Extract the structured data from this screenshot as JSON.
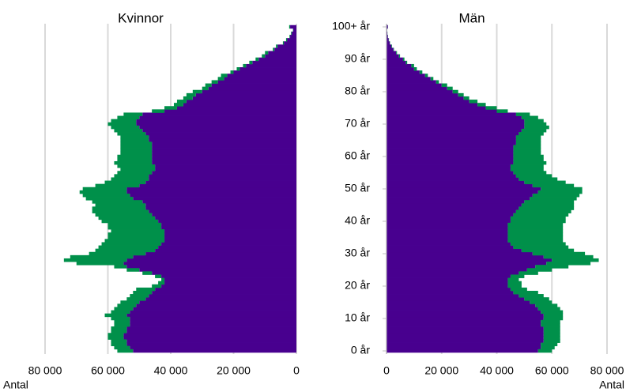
{
  "chart_data": [
    {
      "type": "bar",
      "orientation": "horizontal",
      "stacked": true,
      "title": "Kvinnor",
      "xlabel": "Antal",
      "xlim": [
        80000,
        0
      ],
      "xticks": [
        {
          "value": 80000,
          "label": "80 000"
        },
        {
          "value": 60000,
          "label": "60 000"
        },
        {
          "value": 40000,
          "label": "40 000"
        },
        {
          "value": 20000,
          "label": "20 000"
        },
        0
      ],
      "grid": true,
      "series": [
        {
          "color": "#48008f",
          "values": [
            52000,
            53000,
            54000,
            54000,
            55000,
            55000,
            54000,
            54000,
            53000,
            53000,
            53000,
            54000,
            53000,
            52000,
            51000,
            50000,
            48000,
            47000,
            46000,
            45000,
            43000,
            42000,
            42000,
            43000,
            46000,
            50000,
            54000,
            55000,
            54000,
            52000,
            48000,
            45000,
            44000,
            43000,
            42000,
            42000,
            42000,
            42000,
            43000,
            43000,
            44000,
            45000,
            46000,
            47000,
            48000,
            48000,
            49000,
            52000,
            53000,
            54000,
            54000,
            50000,
            48000,
            47000,
            47000,
            46000,
            45000,
            45000,
            46000,
            46000,
            46000,
            46000,
            46000,
            46000,
            46000,
            47000,
            47000,
            48000,
            49000,
            50000,
            51000,
            51000,
            50000,
            49000,
            42000,
            38000,
            36000,
            35000,
            33000,
            32000,
            30000,
            28000,
            27000,
            25000,
            23000,
            22000,
            20000,
            18000,
            16000,
            14000,
            12000,
            10000,
            9000,
            7000,
            6000,
            4000,
            3000,
            2000,
            1500,
            1000,
            2000
          ]
        },
        {
          "color": "#00904a",
          "values": [
            5000,
            5000,
            5000,
            5000,
            5000,
            5000,
            5000,
            5000,
            5000,
            5000,
            6000,
            7000,
            6000,
            6000,
            6000,
            6000,
            6000,
            6000,
            6000,
            6000,
            3000,
            2000,
            1000,
            2000,
            3000,
            4000,
            4000,
            15000,
            20000,
            20000,
            18000,
            19000,
            19000,
            19000,
            19000,
            18000,
            18000,
            17000,
            17000,
            17000,
            18000,
            18000,
            18000,
            18000,
            17000,
            16000,
            16000,
            15000,
            15000,
            15000,
            14000,
            14000,
            13000,
            12000,
            11000,
            11000,
            11000,
            12000,
            12000,
            11000,
            11000,
            10000,
            10000,
            10000,
            10000,
            9000,
            9000,
            9000,
            9000,
            9000,
            9000,
            8000,
            7000,
            6000,
            4000,
            4000,
            3000,
            3000,
            3000,
            3000,
            3000,
            2000,
            2000,
            2000,
            2000,
            2000,
            1000,
            1000,
            1000,
            1000,
            1000,
            1000,
            1000,
            500,
            500,
            300,
            300,
            200,
            200,
            100,
            300
          ]
        }
      ]
    },
    {
      "type": "bar",
      "orientation": "horizontal",
      "stacked": true,
      "title": "Män",
      "xlabel": "Antal",
      "xlim": [
        0,
        80000
      ],
      "xticks": [
        0,
        {
          "value": 20000,
          "label": "20 000"
        },
        {
          "value": 40000,
          "label": "40 000"
        },
        {
          "value": 60000,
          "label": "60 000"
        },
        {
          "value": 80000,
          "label": "80 000"
        }
      ],
      "grid": true,
      "categories": [
        "0 år",
        null,
        null,
        null,
        null,
        null,
        null,
        null,
        null,
        null,
        "10 år",
        null,
        null,
        null,
        null,
        null,
        null,
        null,
        null,
        null,
        "20 år",
        null,
        null,
        null,
        null,
        null,
        null,
        null,
        null,
        null,
        "30 år",
        null,
        null,
        null,
        null,
        null,
        null,
        null,
        null,
        null,
        "40 år",
        null,
        null,
        null,
        null,
        null,
        null,
        null,
        null,
        null,
        "50 år",
        null,
        null,
        null,
        null,
        null,
        null,
        null,
        null,
        null,
        "60 år",
        null,
        null,
        null,
        null,
        null,
        null,
        null,
        null,
        null,
        "70 år",
        null,
        null,
        null,
        null,
        null,
        null,
        null,
        null,
        null,
        "80 år",
        null,
        null,
        null,
        null,
        null,
        null,
        null,
        null,
        null,
        "90 år",
        null,
        null,
        null,
        null,
        null,
        null,
        null,
        null,
        null,
        "100+ år"
      ],
      "series": [
        {
          "color": "#48008f",
          "values": [
            55000,
            56000,
            56000,
            57000,
            57000,
            57000,
            57000,
            57000,
            56000,
            56000,
            57000,
            57000,
            56000,
            55000,
            54000,
            52000,
            50000,
            48000,
            46000,
            45000,
            44000,
            44000,
            44000,
            45000,
            48000,
            51000,
            54000,
            58000,
            60000,
            57000,
            53000,
            49000,
            46000,
            45000,
            44000,
            44000,
            44000,
            44000,
            44000,
            44000,
            45000,
            45000,
            46000,
            47000,
            48000,
            49000,
            50000,
            52000,
            53000,
            55000,
            56000,
            53000,
            50000,
            48000,
            47000,
            46000,
            45000,
            45000,
            46000,
            46000,
            46000,
            46000,
            46000,
            46000,
            47000,
            47000,
            47000,
            48000,
            49000,
            50000,
            50000,
            50000,
            49000,
            47000,
            40000,
            36000,
            33000,
            30000,
            28000,
            26000,
            24000,
            22000,
            20000,
            18000,
            16000,
            14000,
            12000,
            10000,
            9000,
            7000,
            6000,
            4500,
            3500,
            2500,
            1800,
            1200,
            800,
            500,
            300,
            200,
            500
          ]
        },
        {
          "color": "#00904a",
          "values": [
            5000,
            5000,
            6000,
            6000,
            6000,
            6000,
            6000,
            6000,
            7000,
            7000,
            7000,
            7000,
            8000,
            8000,
            8000,
            8000,
            9000,
            9000,
            9000,
            6000,
            5000,
            5000,
            4000,
            5000,
            7000,
            9000,
            12000,
            16000,
            17000,
            18000,
            19000,
            19000,
            20000,
            20000,
            20000,
            20000,
            20000,
            20000,
            20000,
            20000,
            20000,
            20000,
            20000,
            20000,
            20000,
            19000,
            18000,
            17000,
            17000,
            16000,
            15000,
            15000,
            15000,
            14000,
            13000,
            12000,
            12000,
            12000,
            12000,
            11000,
            11000,
            10000,
            10000,
            10000,
            9000,
            9000,
            9000,
            9000,
            9000,
            9000,
            8000,
            7000,
            6000,
            5000,
            4000,
            4000,
            3000,
            3000,
            2000,
            2000,
            2000,
            2000,
            2000,
            1000,
            1000,
            1000,
            1000,
            1000,
            1000,
            500,
            500,
            400,
            300,
            200,
            200,
            100,
            100,
            50,
            50,
            20,
            50
          ]
        }
      ]
    }
  ]
}
